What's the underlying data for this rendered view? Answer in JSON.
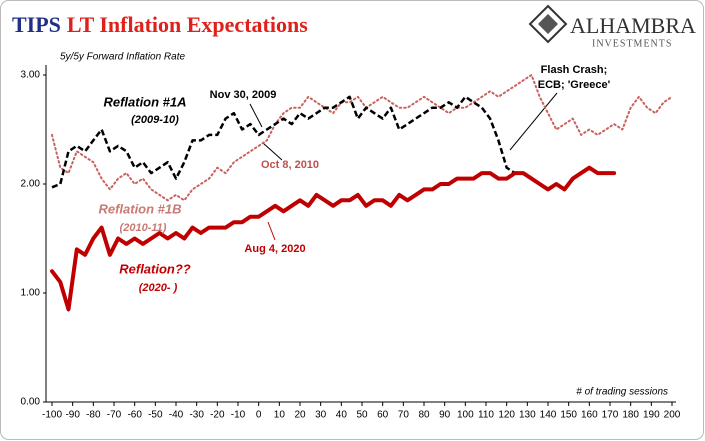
{
  "chart_data": {
    "type": "line",
    "title": {
      "prefix": "TIPS",
      "main": "LT Inflation Expectations"
    },
    "logo": {
      "name": "ALHAMBRA",
      "sub": "INVESTMENTS"
    },
    "subtitle": "5y/5y Forward Inflation Rate",
    "x_label": "# of trading sessions",
    "xlim": [
      -100,
      200
    ],
    "xticks": [
      -100,
      -90,
      -80,
      -70,
      -60,
      -50,
      -40,
      -30,
      -20,
      -10,
      0,
      10,
      20,
      30,
      40,
      50,
      60,
      70,
      80,
      90,
      100,
      110,
      120,
      130,
      140,
      150,
      160,
      170,
      180,
      190,
      200
    ],
    "ylim": [
      0,
      3
    ],
    "yticks": [
      {
        "value": 0,
        "label": "0.00"
      },
      {
        "value": 1,
        "label": "1.00"
      },
      {
        "value": 2,
        "label": "2.00"
      },
      {
        "value": 3,
        "label": "3.00"
      }
    ],
    "annotations": [
      {
        "text": "Reflation #1A",
        "color": "#000000"
      },
      {
        "text": "(2009-10)",
        "color": "#000000"
      },
      {
        "text": "Nov 30, 2009",
        "color": "#000000"
      },
      {
        "text": "Oct 8, 2010",
        "color": "#c0504d"
      },
      {
        "text": "Flash Crash;",
        "color": "#000000"
      },
      {
        "text": "ECB; 'Greece'",
        "color": "#000000"
      },
      {
        "text": "Reflation #1B",
        "color": "#c87a74"
      },
      {
        "text": "(2010-11)",
        "color": "#c87a74"
      },
      {
        "text": "Aug 4, 2020",
        "color": "#c00000"
      },
      {
        "text": "Reflation??",
        "color": "#c00000"
      },
      {
        "text": "(2020- )",
        "color": "#c00000"
      }
    ],
    "series": [
      {
        "name": "Reflation #1B",
        "color": "#c9625c",
        "style": "dotted",
        "x": [
          -100,
          -96,
          -92,
          -88,
          -84,
          -80,
          -76,
          -72,
          -68,
          -64,
          -60,
          -56,
          -52,
          -48,
          -44,
          -40,
          -36,
          -32,
          -28,
          -24,
          -20,
          -16,
          -12,
          -8,
          -4,
          0,
          4,
          8,
          12,
          16,
          20,
          24,
          28,
          32,
          36,
          40,
          44,
          48,
          52,
          56,
          60,
          64,
          68,
          72,
          76,
          80,
          84,
          88,
          92,
          96,
          100,
          104,
          108,
          112,
          116,
          120,
          124,
          128,
          132,
          136,
          140,
          144,
          148,
          152,
          156,
          160,
          164,
          168,
          172,
          176,
          180,
          184,
          188,
          192,
          196,
          200
        ],
        "values": [
          2.45,
          2.15,
          2.1,
          2.3,
          2.25,
          2.2,
          2.05,
          1.95,
          2.05,
          2.1,
          2.0,
          2.05,
          1.95,
          1.9,
          1.85,
          1.9,
          1.85,
          1.95,
          2.0,
          2.05,
          2.15,
          2.1,
          2.2,
          2.25,
          2.3,
          2.35,
          2.4,
          2.55,
          2.65,
          2.7,
          2.7,
          2.8,
          2.75,
          2.7,
          2.65,
          2.75,
          2.75,
          2.8,
          2.7,
          2.75,
          2.8,
          2.75,
          2.7,
          2.7,
          2.75,
          2.8,
          2.75,
          2.7,
          2.65,
          2.7,
          2.7,
          2.75,
          2.8,
          2.85,
          2.8,
          2.85,
          2.9,
          2.95,
          3.0,
          2.8,
          2.65,
          2.5,
          2.55,
          2.6,
          2.45,
          2.5,
          2.45,
          2.5,
          2.55,
          2.5,
          2.7,
          2.8,
          2.7,
          2.65,
          2.75,
          2.8
        ]
      },
      {
        "name": "Reflation #1A",
        "color": "#000000",
        "style": "dashed",
        "x": [
          -100,
          -96,
          -92,
          -88,
          -84,
          -80,
          -76,
          -72,
          -68,
          -64,
          -60,
          -56,
          -52,
          -48,
          -44,
          -40,
          -36,
          -32,
          -28,
          -24,
          -20,
          -16,
          -12,
          -8,
          -4,
          0,
          4,
          8,
          12,
          16,
          20,
          24,
          28,
          32,
          36,
          40,
          44,
          48,
          52,
          56,
          60,
          64,
          68,
          72,
          76,
          80,
          84,
          88,
          92,
          96,
          100,
          104,
          108,
          112,
          116,
          120,
          124
        ],
        "values": [
          1.97,
          2.0,
          2.3,
          2.35,
          2.3,
          2.4,
          2.5,
          2.3,
          2.35,
          2.3,
          2.15,
          2.2,
          2.1,
          2.15,
          2.2,
          2.05,
          2.2,
          2.4,
          2.4,
          2.45,
          2.45,
          2.6,
          2.65,
          2.5,
          2.55,
          2.45,
          2.5,
          2.55,
          2.6,
          2.55,
          2.65,
          2.6,
          2.65,
          2.7,
          2.7,
          2.75,
          2.8,
          2.6,
          2.7,
          2.65,
          2.6,
          2.7,
          2.5,
          2.55,
          2.6,
          2.65,
          2.7,
          2.7,
          2.75,
          2.7,
          2.8,
          2.75,
          2.7,
          2.6,
          2.4,
          2.15,
          2.1
        ]
      },
      {
        "name": "Reflation??",
        "color": "#c00000",
        "style": "solid",
        "x": [
          -100,
          -96,
          -92,
          -88,
          -84,
          -80,
          -76,
          -72,
          -68,
          -64,
          -60,
          -56,
          -52,
          -48,
          -44,
          -40,
          -36,
          -32,
          -28,
          -24,
          -20,
          -16,
          -12,
          -8,
          -4,
          0,
          4,
          8,
          12,
          16,
          20,
          24,
          28,
          32,
          36,
          40,
          44,
          48,
          52,
          56,
          60,
          64,
          68,
          72,
          76,
          80,
          84,
          88,
          92,
          96,
          100,
          104,
          108,
          112,
          116,
          120,
          124,
          128,
          132,
          136,
          140,
          144,
          148,
          152,
          156,
          160,
          164,
          168,
          172
        ],
        "values": [
          1.2,
          1.1,
          0.85,
          1.4,
          1.35,
          1.5,
          1.6,
          1.35,
          1.5,
          1.45,
          1.5,
          1.45,
          1.5,
          1.55,
          1.5,
          1.55,
          1.5,
          1.6,
          1.55,
          1.6,
          1.6,
          1.6,
          1.65,
          1.65,
          1.7,
          1.7,
          1.75,
          1.8,
          1.75,
          1.8,
          1.85,
          1.8,
          1.9,
          1.85,
          1.8,
          1.85,
          1.85,
          1.9,
          1.8,
          1.85,
          1.85,
          1.8,
          1.9,
          1.85,
          1.9,
          1.95,
          1.95,
          2.0,
          2.0,
          2.05,
          2.05,
          2.05,
          2.1,
          2.1,
          2.05,
          2.05,
          2.1,
          2.1,
          2.05,
          2.0,
          1.95,
          2.0,
          1.95,
          2.05,
          2.1,
          2.15,
          2.1,
          2.1,
          2.1
        ]
      }
    ]
  }
}
